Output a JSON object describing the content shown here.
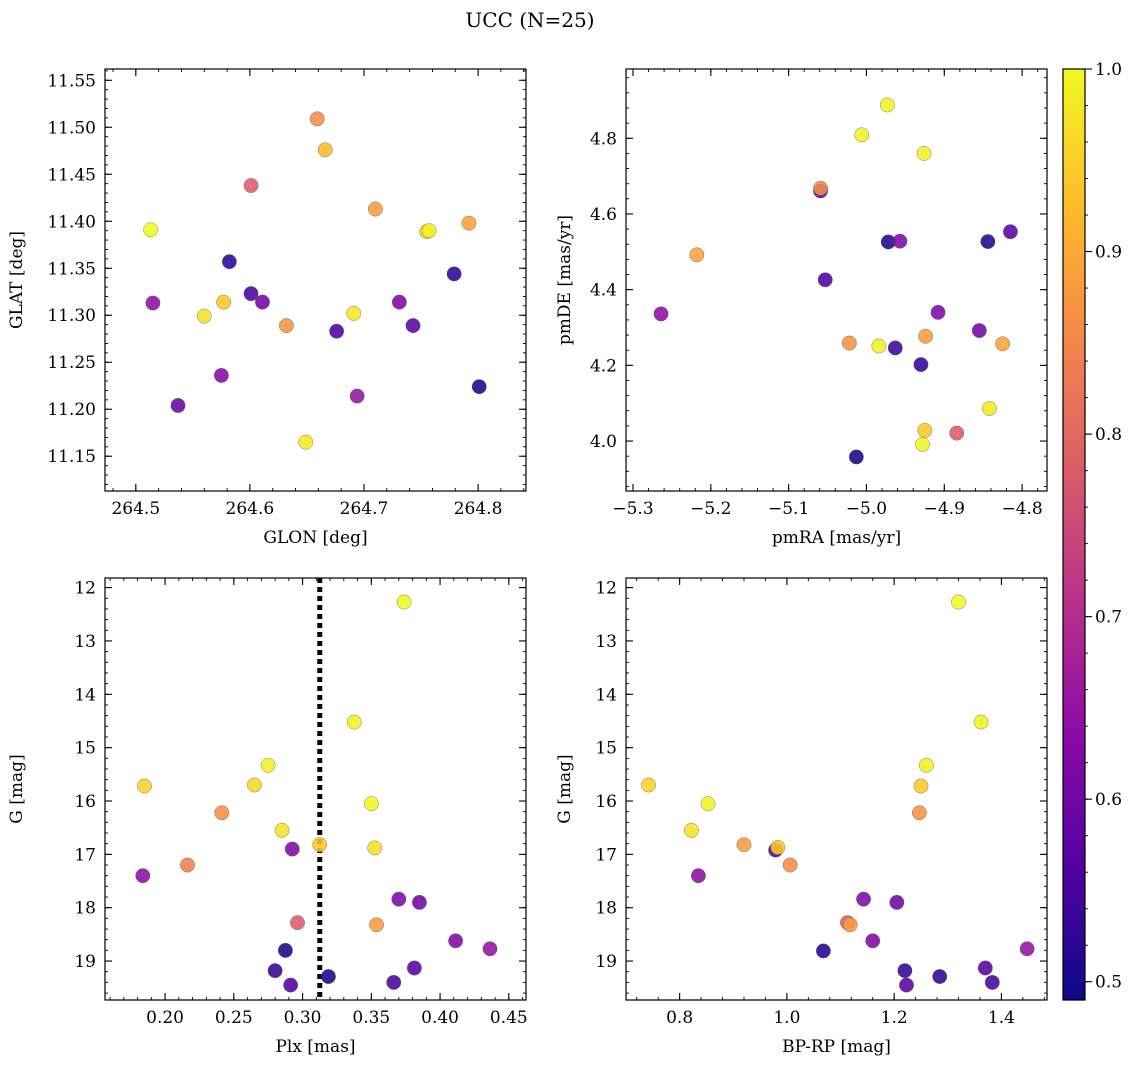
{
  "figure": {
    "title": "UCC (N=25)"
  },
  "colorbar": {
    "range": [
      0.49,
      1.0
    ],
    "ticks": [
      0.5,
      0.6,
      0.7,
      0.8,
      0.9,
      1.0
    ],
    "tick_labels": [
      "0.5",
      "0.6",
      "0.7",
      "0.8",
      "0.9",
      "1.0"
    ],
    "colormap": "plasma",
    "label": ""
  },
  "chart_data": [
    {
      "type": "scatter",
      "title": "",
      "xlabel": "GLON [deg]",
      "ylabel": "GLAT [deg]",
      "xlim": [
        264.473,
        264.842
      ],
      "ylim": [
        11.113,
        11.562
      ],
      "x_ticks": [
        264.5,
        264.6,
        264.7,
        264.8
      ],
      "x_tick_labels": [
        "264.5",
        "264.6",
        "264.7",
        "264.8"
      ],
      "y_ticks": [
        11.15,
        11.2,
        11.25,
        11.3,
        11.35,
        11.4,
        11.45,
        11.5,
        11.55
      ],
      "y_tick_labels": [
        "11.15",
        "11.20",
        "11.25",
        "11.30",
        "11.35",
        "11.40",
        "11.45",
        "11.50",
        "11.55"
      ],
      "y_inverted": false,
      "points": [
        {
          "x": 264.513,
          "y": 11.391,
          "c": 1.0
        },
        {
          "x": 264.515,
          "y": 11.313,
          "c": 0.64
        },
        {
          "x": 264.537,
          "y": 11.204,
          "c": 0.59
        },
        {
          "x": 264.56,
          "y": 11.299,
          "c": 0.97
        },
        {
          "x": 264.575,
          "y": 11.236,
          "c": 0.63
        },
        {
          "x": 264.577,
          "y": 11.314,
          "c": 0.94
        },
        {
          "x": 264.582,
          "y": 11.357,
          "c": 0.52
        },
        {
          "x": 264.601,
          "y": 11.438,
          "c": 0.78
        },
        {
          "x": 264.601,
          "y": 11.323,
          "c": 0.55
        },
        {
          "x": 264.611,
          "y": 11.314,
          "c": 0.6
        },
        {
          "x": 264.632,
          "y": 11.289,
          "c": 0.87
        },
        {
          "x": 264.649,
          "y": 11.165,
          "c": 0.98
        },
        {
          "x": 264.659,
          "y": 11.509,
          "c": 0.86
        },
        {
          "x": 264.666,
          "y": 11.476,
          "c": 0.92
        },
        {
          "x": 264.676,
          "y": 11.283,
          "c": 0.56
        },
        {
          "x": 264.691,
          "y": 11.302,
          "c": 0.98
        },
        {
          "x": 264.694,
          "y": 11.214,
          "c": 0.65
        },
        {
          "x": 264.71,
          "y": 11.413,
          "c": 0.88
        },
        {
          "x": 264.731,
          "y": 11.314,
          "c": 0.62
        },
        {
          "x": 264.743,
          "y": 11.289,
          "c": 0.57
        },
        {
          "x": 264.755,
          "y": 11.389,
          "c": 0.95
        },
        {
          "x": 264.757,
          "y": 11.39,
          "c": 0.99
        },
        {
          "x": 264.779,
          "y": 11.344,
          "c": 0.52
        },
        {
          "x": 264.792,
          "y": 11.398,
          "c": 0.89
        },
        {
          "x": 264.801,
          "y": 11.224,
          "c": 0.5
        }
      ]
    },
    {
      "type": "scatter",
      "title": "",
      "xlabel": "pmRA [mas/yr]",
      "ylabel": "pmDE [mas/yr]",
      "xlim": [
        -5.309,
        -4.768
      ],
      "ylim": [
        3.868,
        4.983
      ],
      "x_ticks": [
        -5.3,
        -5.2,
        -5.1,
        -5.0,
        -4.9,
        -4.8
      ],
      "x_tick_labels": [
        "−5.3",
        "−5.2",
        "−5.1",
        "−5.0",
        "−4.9",
        "−4.8"
      ],
      "y_ticks": [
        4.0,
        4.2,
        4.4,
        4.6,
        4.8
      ],
      "y_tick_labels": [
        "4.0",
        "4.2",
        "4.4",
        "4.6",
        "4.8"
      ],
      "y_inverted": false,
      "points": [
        {
          "x": -5.264,
          "y": 4.336,
          "c": 0.64
        },
        {
          "x": -5.218,
          "y": 4.492,
          "c": 0.89
        },
        {
          "x": -5.059,
          "y": 4.661,
          "c": 0.57
        },
        {
          "x": -5.059,
          "y": 4.668,
          "c": 0.86
        },
        {
          "x": -5.053,
          "y": 4.426,
          "c": 0.56
        },
        {
          "x": -5.022,
          "y": 4.259,
          "c": 0.87
        },
        {
          "x": -5.013,
          "y": 3.958,
          "c": 0.5
        },
        {
          "x": -5.006,
          "y": 4.809,
          "c": 0.99
        },
        {
          "x": -4.984,
          "y": 4.251,
          "c": 0.99
        },
        {
          "x": -4.973,
          "y": 4.888,
          "c": 0.99
        },
        {
          "x": -4.972,
          "y": 4.526,
          "c": 0.51
        },
        {
          "x": -4.963,
          "y": 4.246,
          "c": 0.54
        },
        {
          "x": -4.957,
          "y": 4.528,
          "c": 0.62
        },
        {
          "x": -4.93,
          "y": 4.202,
          "c": 0.53
        },
        {
          "x": -4.928,
          "y": 3.991,
          "c": 0.99
        },
        {
          "x": -4.926,
          "y": 4.76,
          "c": 0.99
        },
        {
          "x": -4.925,
          "y": 4.028,
          "c": 0.94
        },
        {
          "x": -4.924,
          "y": 4.277,
          "c": 0.88
        },
        {
          "x": -4.908,
          "y": 4.34,
          "c": 0.62
        },
        {
          "x": -4.884,
          "y": 4.021,
          "c": 0.78
        },
        {
          "x": -4.855,
          "y": 4.292,
          "c": 0.6
        },
        {
          "x": -4.844,
          "y": 4.527,
          "c": 0.51
        },
        {
          "x": -4.842,
          "y": 4.086,
          "c": 0.98
        },
        {
          "x": -4.825,
          "y": 4.257,
          "c": 0.89
        },
        {
          "x": -4.815,
          "y": 4.553,
          "c": 0.57
        }
      ]
    },
    {
      "type": "scatter",
      "title": "",
      "xlabel": "Plx [mas]",
      "ylabel": "G [mag]",
      "xlim": [
        0.1563,
        0.4625
      ],
      "ylim": [
        19.73,
        11.82
      ],
      "x_ticks": [
        0.2,
        0.25,
        0.3,
        0.35,
        0.4,
        0.45
      ],
      "x_tick_labels": [
        "0.20",
        "0.25",
        "0.30",
        "0.35",
        "0.40",
        "0.45"
      ],
      "y_ticks": [
        12,
        13,
        14,
        15,
        16,
        17,
        18,
        19
      ],
      "y_tick_labels": [
        "12",
        "13",
        "14",
        "15",
        "16",
        "17",
        "18",
        "19"
      ],
      "y_inverted": true,
      "reference_line": {
        "x": 0.3125,
        "style": "dotted"
      },
      "points": [
        {
          "x": 0.185,
          "y": 15.72,
          "c": 0.95
        },
        {
          "x": 0.1838,
          "y": 17.4,
          "c": 0.64
        },
        {
          "x": 0.2163,
          "y": 17.2,
          "c": 0.84
        },
        {
          "x": 0.2413,
          "y": 16.22,
          "c": 0.86
        },
        {
          "x": 0.265,
          "y": 15.7,
          "c": 0.96
        },
        {
          "x": 0.275,
          "y": 15.33,
          "c": 0.99
        },
        {
          "x": 0.285,
          "y": 16.55,
          "c": 0.97
        },
        {
          "x": 0.2925,
          "y": 16.9,
          "c": 0.62
        },
        {
          "x": 0.2963,
          "y": 18.28,
          "c": 0.78
        },
        {
          "x": 0.28,
          "y": 19.18,
          "c": 0.53
        },
        {
          "x": 0.2875,
          "y": 18.8,
          "c": 0.5
        },
        {
          "x": 0.2913,
          "y": 19.45,
          "c": 0.56
        },
        {
          "x": 0.3125,
          "y": 16.82,
          "c": 0.94
        },
        {
          "x": 0.3188,
          "y": 19.29,
          "c": 0.5
        },
        {
          "x": 0.3375,
          "y": 14.52,
          "c": 0.99
        },
        {
          "x": 0.35,
          "y": 16.05,
          "c": 0.99
        },
        {
          "x": 0.3525,
          "y": 16.88,
          "c": 0.97
        },
        {
          "x": 0.3538,
          "y": 18.32,
          "c": 0.88
        },
        {
          "x": 0.3663,
          "y": 19.4,
          "c": 0.55
        },
        {
          "x": 0.37,
          "y": 17.84,
          "c": 0.62
        },
        {
          "x": 0.3738,
          "y": 12.27,
          "c": 1.0
        },
        {
          "x": 0.3813,
          "y": 19.13,
          "c": 0.57
        },
        {
          "x": 0.385,
          "y": 17.9,
          "c": 0.6
        },
        {
          "x": 0.4113,
          "y": 18.62,
          "c": 0.62
        },
        {
          "x": 0.4363,
          "y": 18.77,
          "c": 0.65
        }
      ]
    },
    {
      "type": "scatter",
      "title": "",
      "xlabel": "BP-RP [mag]",
      "ylabel": "G [mag]",
      "xlim": [
        0.7,
        1.485
      ],
      "ylim": [
        19.73,
        11.82
      ],
      "x_ticks": [
        0.8,
        1.0,
        1.2,
        1.4
      ],
      "x_tick_labels": [
        "0.8",
        "1.0",
        "1.2",
        "1.4"
      ],
      "y_ticks": [
        12,
        13,
        14,
        15,
        16,
        17,
        18,
        19
      ],
      "y_tick_labels": [
        "12",
        "13",
        "14",
        "15",
        "16",
        "17",
        "18",
        "19"
      ],
      "y_inverted": true,
      "points": [
        {
          "x": 0.742,
          "y": 15.7,
          "c": 0.95
        },
        {
          "x": 0.822,
          "y": 16.55,
          "c": 0.97
        },
        {
          "x": 0.835,
          "y": 17.4,
          "c": 0.64
        },
        {
          "x": 0.853,
          "y": 16.05,
          "c": 0.99
        },
        {
          "x": 0.92,
          "y": 16.82,
          "c": 0.88
        },
        {
          "x": 0.979,
          "y": 16.92,
          "c": 0.56
        },
        {
          "x": 0.983,
          "y": 16.87,
          "c": 0.94
        },
        {
          "x": 1.006,
          "y": 17.2,
          "c": 0.86
        },
        {
          "x": 1.068,
          "y": 18.81,
          "c": 0.51
        },
        {
          "x": 1.113,
          "y": 18.28,
          "c": 0.78
        },
        {
          "x": 1.118,
          "y": 18.32,
          "c": 0.88
        },
        {
          "x": 1.143,
          "y": 17.84,
          "c": 0.62
        },
        {
          "x": 1.16,
          "y": 18.62,
          "c": 0.62
        },
        {
          "x": 1.205,
          "y": 17.9,
          "c": 0.6
        },
        {
          "x": 1.22,
          "y": 19.18,
          "c": 0.53
        },
        {
          "x": 1.223,
          "y": 19.45,
          "c": 0.57
        },
        {
          "x": 1.247,
          "y": 16.22,
          "c": 0.87
        },
        {
          "x": 1.25,
          "y": 15.72,
          "c": 0.94
        },
        {
          "x": 1.26,
          "y": 15.33,
          "c": 0.99
        },
        {
          "x": 1.285,
          "y": 19.29,
          "c": 0.52
        },
        {
          "x": 1.32,
          "y": 12.27,
          "c": 1.0
        },
        {
          "x": 1.362,
          "y": 14.52,
          "c": 0.99
        },
        {
          "x": 1.37,
          "y": 19.13,
          "c": 0.57
        },
        {
          "x": 1.383,
          "y": 19.4,
          "c": 0.55
        },
        {
          "x": 1.448,
          "y": 18.77,
          "c": 0.65
        }
      ]
    }
  ]
}
